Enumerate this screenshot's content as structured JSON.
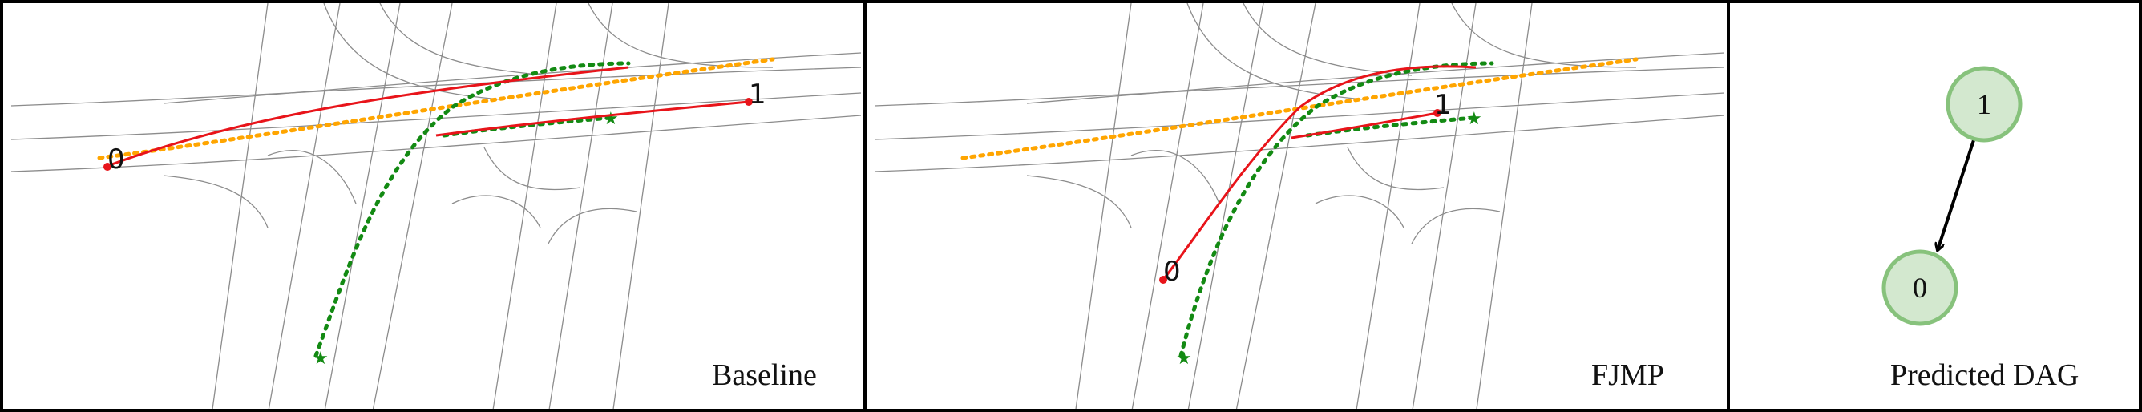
{
  "panels": {
    "baseline": {
      "caption": "Baseline",
      "agent_labels": [
        "0",
        "1"
      ]
    },
    "fjmp": {
      "caption": "FJMP",
      "agent_labels": [
        "0",
        "1"
      ]
    },
    "dag": {
      "caption": "Predicted DAG",
      "nodes": [
        "1",
        "0"
      ]
    }
  },
  "colors": {
    "prediction": "#e8141a",
    "ground_truth_0": "#ffa500",
    "ground_truth_1": "#138a13",
    "lane": "#8c8c8c",
    "node_fill": "#d3e8cf",
    "node_stroke": "#87c27c",
    "edge": "#000000"
  }
}
